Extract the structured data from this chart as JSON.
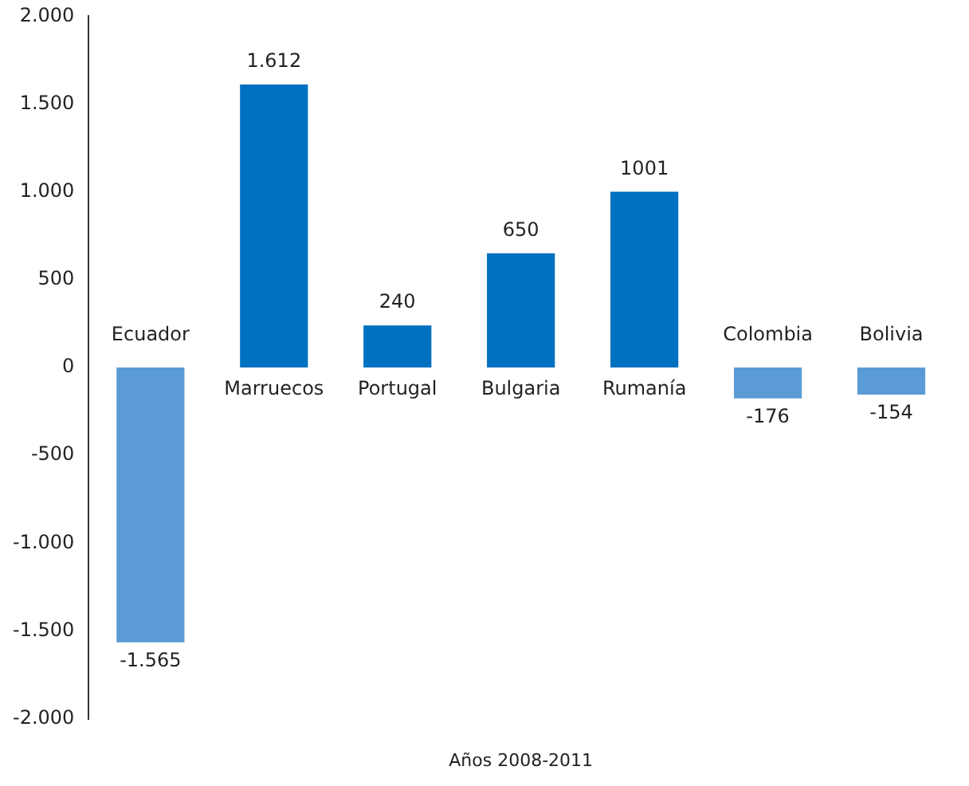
{
  "chart_data": {
    "type": "bar",
    "xlabel": "Años 2008-2011",
    "categories": [
      "Ecuador",
      "Marruecos",
      "Portugal",
      "Bulgaria",
      "Rumanía",
      "Colombia",
      "Bolivia"
    ],
    "values": [
      -1565,
      1612,
      240,
      650,
      1001,
      -176,
      -154
    ],
    "colors": [
      "#5b9bd5",
      "#0070c0",
      "#0070c0",
      "#0070c0",
      "#0070c0",
      "#5b9bd5",
      "#5b9bd5"
    ],
    "value_labels": [
      "-1.565",
      "1.612",
      "240",
      "650",
      "1001",
      "-176",
      "-154"
    ],
    "ylim": [
      -2000,
      2000
    ],
    "yticks": [
      {
        "value": -2000,
        "label": "-2.000"
      },
      {
        "value": -1500,
        "label": "-1.500"
      },
      {
        "value": -1000,
        "label": "-1.000"
      },
      {
        "value": -500,
        "label": "-500"
      },
      {
        "value": 0,
        "label": "0"
      },
      {
        "value": 500,
        "label": "500"
      },
      {
        "value": 1000,
        "label": "1.000"
      },
      {
        "value": 1500,
        "label": "1.500"
      },
      {
        "value": 2000,
        "label": "2.000"
      }
    ],
    "grid": false,
    "legend": false
  }
}
